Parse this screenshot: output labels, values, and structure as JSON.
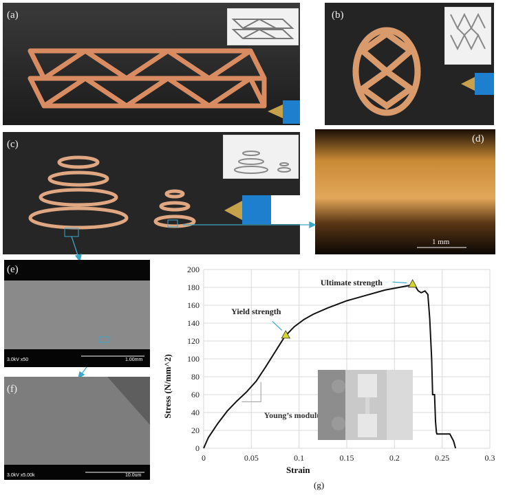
{
  "panels": {
    "a": {
      "label": "(a)"
    },
    "b": {
      "label": "(b)"
    },
    "c": {
      "label": "(c)"
    },
    "d": {
      "label": "(d)",
      "scale_label": "1 mm"
    },
    "e": {
      "label": "(e)",
      "sem_info": "3.0kV x50",
      "scale_label": "1.00mm"
    },
    "f": {
      "label": "(f)",
      "sem_info": "3.0kV x5.00k",
      "scale_label": "10.0um"
    },
    "g": {
      "label": "(g)"
    }
  },
  "colors": {
    "clay": "#d98c62",
    "curve": "#111111",
    "marker": "#d4d62a",
    "arrow": "#3aa6c9"
  },
  "chart_data": {
    "type": "line",
    "xlabel": "Strain",
    "ylabel": "Stress (N/mm^2)",
    "xlim": [
      0,
      0.3
    ],
    "ylim": [
      0,
      200
    ],
    "x_ticks": [
      "0",
      "0.05",
      "0.1",
      "0.15",
      "0.2",
      "0.25",
      "0.3"
    ],
    "y_ticks": [
      "0",
      "20",
      "40",
      "60",
      "80",
      "100",
      "120",
      "140",
      "160",
      "180",
      "200"
    ],
    "grid": true,
    "series": [
      {
        "x": [
          0,
          0.005,
          0.015,
          0.025,
          0.035,
          0.045,
          0.055,
          0.065,
          0.075,
          0.085,
          0.095,
          0.105,
          0.115,
          0.13,
          0.15,
          0.17,
          0.19,
          0.205,
          0.215,
          0.22,
          0.225,
          0.228,
          0.232,
          0.235,
          0.237,
          0.239,
          0.24,
          0.242,
          0.243,
          0.244,
          0.2445,
          0.25,
          0.258,
          0.262,
          0.264
        ],
        "y": [
          0,
          12,
          28,
          42,
          53,
          63,
          75,
          91,
          108,
          125,
          136,
          144,
          150,
          157,
          165,
          171,
          177,
          180,
          182,
          184,
          176,
          174,
          176,
          172,
          145,
          100,
          60,
          60,
          30,
          18,
          16,
          16,
          16,
          8,
          0
        ]
      }
    ],
    "annotations": [
      {
        "text": "Ultimate strength",
        "x": 0.219,
        "y": 184
      },
      {
        "text": "Yield strength",
        "x": 0.086,
        "y": 127
      },
      {
        "text": "Young’s modulus",
        "x": 0.05,
        "y": 58
      }
    ]
  }
}
